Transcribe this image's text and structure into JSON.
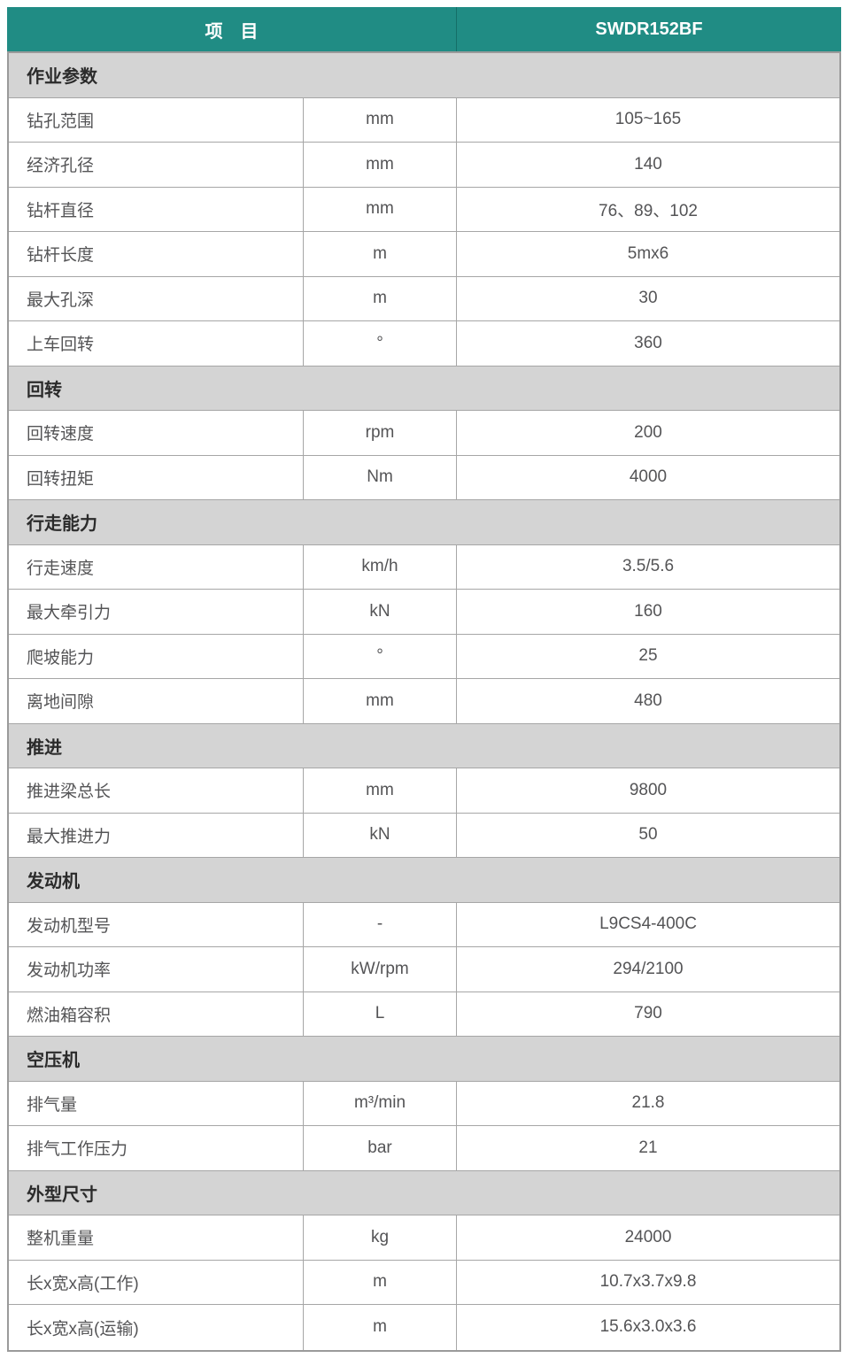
{
  "header": {
    "item_label": "项　目",
    "model": "SWDR152BF"
  },
  "colors": {
    "header_bg": "#208C84",
    "header_text": "#FFFFFF",
    "section_bg": "#D4D4D4",
    "row_bg": "#FFFFFF",
    "border": "#A6A6A6",
    "text": "#545456"
  },
  "sections": [
    {
      "title": "作业参数",
      "rows": [
        {
          "label": "钻孔范围",
          "unit": "mm",
          "value": "105~165"
        },
        {
          "label": "经济孔径",
          "unit": "mm",
          "value": "140"
        },
        {
          "label": "钻杆直径",
          "unit": "mm",
          "value": "76、89、102"
        },
        {
          "label": "钻杆长度",
          "unit": "m",
          "value": "5mx6"
        },
        {
          "label": "最大孔深",
          "unit": "m",
          "value": "30"
        },
        {
          "label": "上车回转",
          "unit": "°",
          "value": "360"
        }
      ]
    },
    {
      "title": "回转",
      "rows": [
        {
          "label": "回转速度",
          "unit": "rpm",
          "value": "200"
        },
        {
          "label": "回转扭矩",
          "unit": "Nm",
          "value": "4000"
        }
      ]
    },
    {
      "title": "行走能力",
      "rows": [
        {
          "label": "行走速度",
          "unit": "km/h",
          "value": "3.5/5.6"
        },
        {
          "label": "最大牵引力",
          "unit": "kN",
          "value": "160"
        },
        {
          "label": "爬坡能力",
          "unit": "°",
          "value": "25"
        },
        {
          "label": "离地间隙",
          "unit": "mm",
          "value": "480"
        }
      ]
    },
    {
      "title": "推进",
      "rows": [
        {
          "label": "推进梁总长",
          "unit": "mm",
          "value": "9800"
        },
        {
          "label": "最大推进力",
          "unit": "kN",
          "value": "50"
        }
      ]
    },
    {
      "title": "发动机",
      "rows": [
        {
          "label": "发动机型号",
          "unit": "-",
          "value": "L9CS4-400C"
        },
        {
          "label": "发动机功率",
          "unit": "kW/rpm",
          "value": "294/2100"
        },
        {
          "label": "燃油箱容积",
          "unit": "L",
          "value": "790"
        }
      ]
    },
    {
      "title": "空压机",
      "rows": [
        {
          "label": "排气量",
          "unit": "m³/min",
          "value": "21.8"
        },
        {
          "label": "排气工作压力",
          "unit": "bar",
          "value": "21"
        }
      ]
    },
    {
      "title": "外型尺寸",
      "rows": [
        {
          "label": "整机重量",
          "unit": "kg",
          "value": "24000"
        },
        {
          "label": "长x宽x高(工作)",
          "unit": "m",
          "value": "10.7x3.7x9.8"
        },
        {
          "label": "长x宽x高(运输)",
          "unit": "m",
          "value": "15.6x3.0x3.6"
        }
      ]
    }
  ]
}
